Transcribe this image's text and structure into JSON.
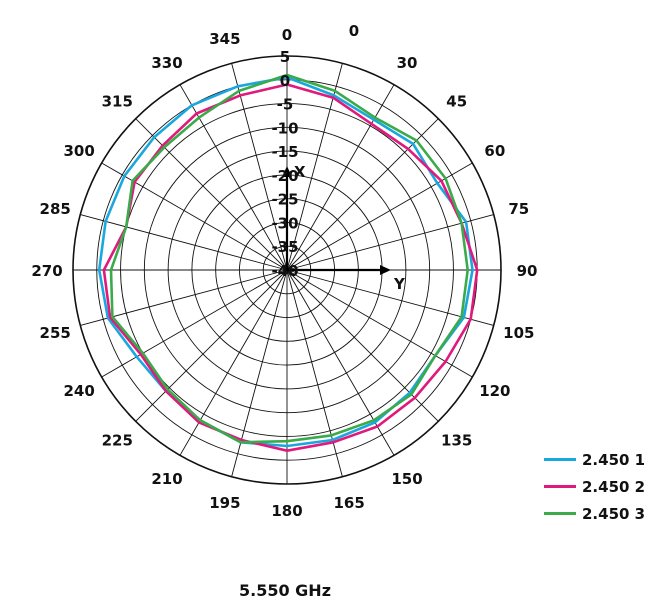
{
  "chart_data": {
    "type": "polar-line",
    "caption": "5.550 GHz",
    "angle_tick_labels": [
      "0",
      "30",
      "45",
      "60",
      "75",
      "90",
      "105",
      "120",
      "135",
      "150",
      "165",
      "180",
      "195",
      "210",
      "225",
      "240",
      "255",
      "270",
      "285",
      "300",
      "315",
      "330",
      "345",
      "0"
    ],
    "angle_tick_degrees": [
      0,
      30,
      45,
      60,
      75,
      90,
      105,
      120,
      135,
      150,
      165,
      180,
      195,
      210,
      225,
      240,
      255,
      270,
      285,
      300,
      315,
      330,
      345,
      360
    ],
    "radial_tick_labels": [
      "5",
      "0",
      "-5",
      "-10",
      "-15",
      "-20",
      "-25",
      "-30",
      "-35",
      "-40"
    ],
    "radial_tick_values": [
      5,
      0,
      -5,
      -10,
      -15,
      -20,
      -25,
      -30,
      -35,
      -40
    ],
    "r_range": [
      -40,
      5
    ],
    "axis_names": {
      "x": "X",
      "y": "Y"
    },
    "colors": {
      "grid": "#111111",
      "axis_arrow": "#000000"
    },
    "angles": [
      0,
      15,
      30,
      45,
      60,
      75,
      90,
      105,
      120,
      135,
      150,
      165,
      180,
      195,
      210,
      225,
      240,
      255,
      270,
      285,
      300,
      315,
      330,
      345,
      360
    ],
    "series": [
      {
        "name": "2.450 1",
        "color": "#1aa7e0",
        "values": [
          0.5,
          -2,
          -3.5,
          -2.5,
          -3.5,
          -1,
          -1,
          -1.5,
          -4,
          -3.5,
          -3,
          -3,
          -3,
          -2.5,
          -3.5,
          -4,
          -3.5,
          -1,
          -0.5,
          -0.5,
          -0.5,
          -0.5,
          0,
          0,
          0.5
        ]
      },
      {
        "name": "2.450 2",
        "color": "#e0197d",
        "values": [
          -1,
          -2.5,
          -4.5,
          -4,
          -2.5,
          -2,
          0,
          0,
          -1.5,
          -2,
          -2,
          -2.5,
          -2,
          -3,
          -3,
          -4,
          -4.5,
          -1.5,
          -1.5,
          -5,
          -3,
          -3,
          -2,
          -2,
          -1
        ]
      },
      {
        "name": "2.450 3",
        "color": "#3aaa4a",
        "values": [
          1,
          -1,
          -3,
          -1.5,
          -1.5,
          -2,
          -2,
          -2,
          -4,
          -3,
          -3.5,
          -4,
          -4,
          -2.5,
          -3.5,
          -4.5,
          -5,
          -2,
          -3,
          -5,
          -2.5,
          -3.5,
          -3,
          -1,
          1
        ]
      }
    ]
  }
}
